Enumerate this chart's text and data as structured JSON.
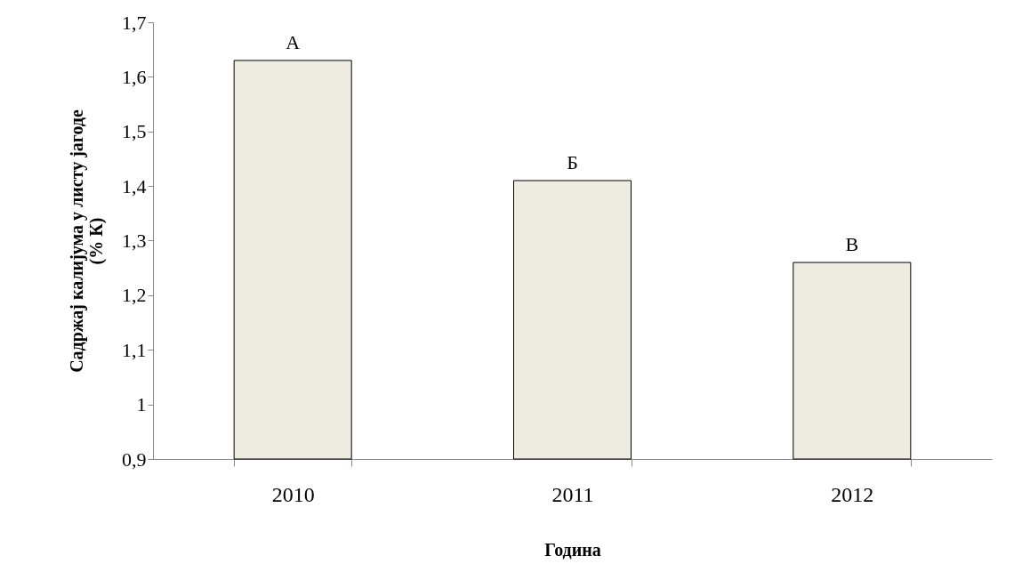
{
  "chart_data": {
    "type": "bar",
    "xlabel": "Година",
    "ylabel": "Садржај  калијума у листу јагоде\n(% К)",
    "categories": [
      "2010",
      "2011",
      "2012"
    ],
    "values": [
      1.63,
      1.41,
      1.26
    ],
    "color": "#eeebe0",
    "ylim": [
      0.9,
      1.7
    ],
    "yticks": [
      {
        "value": 0.9,
        "label": "0,9"
      },
      1,
      {
        "value": 1.1,
        "label": "1,1"
      },
      {
        "value": 1.2,
        "label": "1,2"
      },
      {
        "value": 1.3,
        "label": "1,3"
      },
      {
        "value": 1.4,
        "label": "1,4"
      },
      {
        "value": 1.5,
        "label": "1,5"
      },
      {
        "value": 1.6,
        "label": "1,6"
      },
      {
        "value": 1.7,
        "label": "1,7"
      }
    ],
    "annotations": [
      {
        "text": "А",
        "x": "2010",
        "y": 1.63
      },
      {
        "text": "Б",
        "x": "2011",
        "y": 1.41
      },
      {
        "text": "В",
        "x": "2012",
        "y": 1.26
      }
    ]
  }
}
